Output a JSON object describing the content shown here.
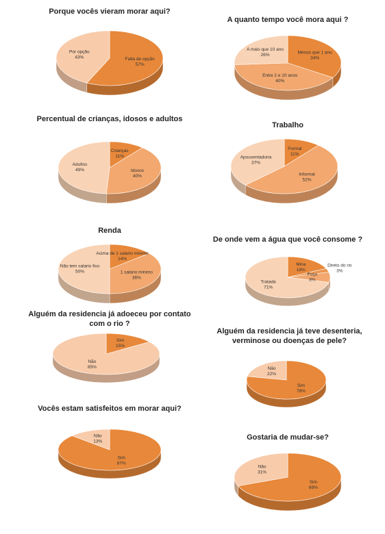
{
  "chart_data": [
    {
      "type": "pie",
      "title": "Porque vocês vieram morar aqui?",
      "categories": [
        "Falta de opção",
        "Por opção"
      ],
      "values": [
        57,
        43
      ],
      "value_labels": [
        "57%",
        "43%"
      ],
      "colors": [
        "#e8883a",
        "#f8cbaa"
      ]
    },
    {
      "type": "pie",
      "title": "A quanto tempo você mora aqui ?",
      "categories": [
        "Menos que 1 ano",
        "Entre 2 e 10 anos",
        "A mais que 10 ano"
      ],
      "values": [
        34,
        40,
        26
      ],
      "value_labels": [
        "34%",
        "40%",
        "26%"
      ],
      "colors": [
        "#e8883a",
        "#f2a86f",
        "#f9d3b5"
      ]
    },
    {
      "type": "pie",
      "title": "Percentual de crianças, idosos e adultos",
      "categories": [
        "Crianças",
        "Idosos",
        "Adultos"
      ],
      "values": [
        11,
        40,
        49
      ],
      "value_labels": [
        "11%",
        "40%",
        "49%"
      ],
      "colors": [
        "#e8883a",
        "#f2a86f",
        "#f9d3b5"
      ]
    },
    {
      "type": "pie",
      "title": "Trabalho",
      "categories": [
        "Formal",
        "Informal",
        "Apousentadoria"
      ],
      "values": [
        11,
        52,
        37
      ],
      "value_labels": [
        "11%",
        "52%",
        "37%"
      ],
      "colors": [
        "#e8883a",
        "#f2a86f",
        "#f9d3b5"
      ]
    },
    {
      "type": "pie",
      "title": "Renda",
      "categories": [
        "Acima de 1 salario minimo",
        "1 salario minimo",
        "Não tem salario fixo"
      ],
      "values": [
        14,
        36,
        50
      ],
      "value_labels": [
        "14%",
        "36%",
        "50%"
      ],
      "colors": [
        "#e8883a",
        "#f2a86f",
        "#f9d3b5"
      ]
    },
    {
      "type": "pie",
      "title": "De onde vem a água que você consome ?",
      "categories": [
        "Mina",
        "Direto do rio",
        "Poço",
        "Tratada"
      ],
      "values": [
        18,
        3,
        8,
        71
      ],
      "value_labels": [
        "18%",
        "3%",
        "8%",
        "71%"
      ],
      "colors": [
        "#e8883a",
        "#ec9650",
        "#f2a86f",
        "#f9d3b5"
      ]
    },
    {
      "type": "pie",
      "title": "Alguém da residencia já adoeceu por contato com o rio ?",
      "categories": [
        "Sim",
        "Não"
      ],
      "values": [
        15,
        85
      ],
      "value_labels": [
        "15%",
        "85%"
      ],
      "colors": [
        "#e8883a",
        "#f8cbaa"
      ]
    },
    {
      "type": "pie",
      "title": "Alguém da residencia já teve desenteria, verminose ou doenças de pele?",
      "categories": [
        "Sim",
        "Não"
      ],
      "values": [
        78,
        22
      ],
      "value_labels": [
        "78%",
        "22%"
      ],
      "colors": [
        "#e8883a",
        "#f8cbaa"
      ]
    },
    {
      "type": "pie",
      "title": "Vocês estam satisfeitos em morar aqui?",
      "categories": [
        "Sim",
        "Não"
      ],
      "values": [
        87,
        13
      ],
      "value_labels": [
        "87%",
        "13%"
      ],
      "colors": [
        "#e8883a",
        "#f8cbaa"
      ]
    },
    {
      "type": "pie",
      "title": "Gostaria de mudar-se?",
      "categories": [
        "Sim",
        "Não"
      ],
      "values": [
        69,
        31
      ],
      "value_labels": [
        "69%",
        "31%"
      ],
      "colors": [
        "#e8883a",
        "#f8cbaa"
      ]
    }
  ]
}
